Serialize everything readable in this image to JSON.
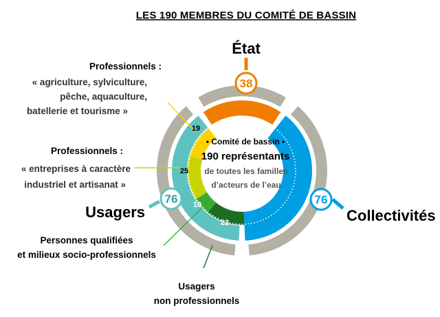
{
  "title": "LES 190 MEMBRES DU COMITÉ DE BASSIN",
  "center": {
    "line1": "• Comité de bassin •",
    "line2": "190 représentants",
    "line3": "de toutes les familles",
    "line4": "d’acteurs de l’eau"
  },
  "labels": {
    "etat": "État",
    "collectivites": "Collectivités",
    "usagers": "Usagers",
    "pro_agri_l1": "Professionnels :",
    "pro_agri_l2": "« agriculture, sylviculture,",
    "pro_agri_l3": "pêche, aquaculture,",
    "pro_agri_l4": "batellerie et tourisme »",
    "pro_ent_l1": "Professionnels :",
    "pro_ent_l2": "« entreprises à caractère",
    "pro_ent_l3": "industriel et artisanat »",
    "qual_l1": "Personnes qualifiées",
    "qual_l2": "et milieux socio-professionnels",
    "nonpro_l1": "Usagers",
    "nonpro_l2": "non professionnels"
  },
  "colors": {
    "etat": "#f07d00",
    "collectivites": "#009ee3",
    "usagers": "#5ec3c0",
    "outer_ring": "#b3b1a3",
    "pro_agri": "#ffd100",
    "pro_ent": "#c8d400",
    "qualifiees": "#3aaa35",
    "non_pro": "#1d6e24"
  },
  "chart_data": {
    "type": "pie",
    "total": 190,
    "segments": [
      {
        "name": "État",
        "value": 38
      },
      {
        "name": "Collectivités",
        "value": 76
      },
      {
        "name": "Usagers",
        "value": 76
      }
    ],
    "usagers_breakdown": [
      {
        "name": "Professionnels : « agriculture, sylviculture, pêche, aquaculture, batellerie et tourisme »",
        "value": 19
      },
      {
        "name": "Professionnels : « entreprises à caractère industriel et artisanat »",
        "value": 25
      },
      {
        "name": "Personnes qualifiées et milieux socio-professionnels",
        "value": 10
      },
      {
        "name": "Usagers non professionnels",
        "value": 22
      }
    ]
  }
}
